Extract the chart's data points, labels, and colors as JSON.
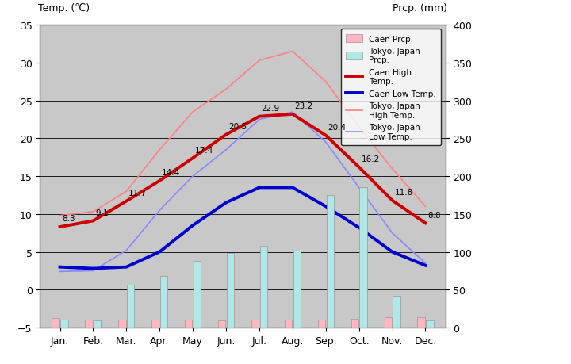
{
  "months": [
    "Jan.",
    "Feb.",
    "Mar.",
    "Apr.",
    "May",
    "Jun.",
    "Jul.",
    "Aug.",
    "Sep.",
    "Oct.",
    "Nov.",
    "Dec."
  ],
  "caen_high_temp": [
    8.3,
    9.1,
    11.7,
    14.4,
    17.4,
    20.5,
    22.9,
    23.2,
    20.4,
    16.2,
    11.8,
    8.8
  ],
  "caen_low_temp": [
    3.0,
    2.8,
    3.0,
    5.0,
    8.5,
    11.5,
    13.5,
    13.5,
    11.0,
    8.2,
    5.0,
    3.2
  ],
  "tokyo_high_temp": [
    9.8,
    10.3,
    13.0,
    18.5,
    23.5,
    26.5,
    30.3,
    31.5,
    27.5,
    21.5,
    16.0,
    11.0
  ],
  "tokyo_low_temp": [
    2.4,
    2.5,
    5.2,
    10.5,
    15.0,
    18.5,
    22.5,
    23.5,
    19.5,
    13.5,
    7.5,
    3.5
  ],
  "caen_prcp_mm": [
    13,
    10,
    10,
    10,
    10,
    9,
    11,
    10,
    11,
    12,
    14,
    14
  ],
  "tokyo_prcp_mm": [
    11,
    9,
    57,
    68,
    88,
    98,
    108,
    102,
    175,
    185,
    42,
    9
  ],
  "background_color": "#c8c8c8",
  "caen_high_color": "#cc0000",
  "caen_low_color": "#0000cc",
  "tokyo_high_color": "#ff8080",
  "tokyo_low_color": "#8888ff",
  "caen_prcp_color": "#ffb6c1",
  "tokyo_prcp_color": "#b0e8e8",
  "title_left": "Temp. (℃)",
  "title_right": "Prcp. (mm)",
  "ylim_temp": [
    -5,
    35
  ],
  "ylim_prcp": [
    0,
    400
  ],
  "temp_ticks": [
    -5,
    0,
    5,
    10,
    15,
    20,
    25,
    30,
    35
  ],
  "prcp_ticks": [
    0,
    50,
    100,
    150,
    200,
    250,
    300,
    350,
    400
  ]
}
